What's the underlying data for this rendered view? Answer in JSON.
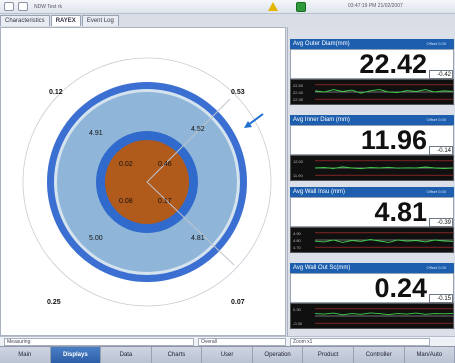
{
  "titlebar": {
    "title": "NDW Test rk",
    "clock": "03:47:19 PM 21/02/2007"
  },
  "tabs": [
    "Characteristics",
    "RAYEX",
    "Event Log"
  ],
  "cross_section": {
    "outer_corners": {
      "top_left": "0.12",
      "top_right": "0.53",
      "bottom_left": "0.25",
      "bottom_right": "0.07"
    },
    "wall": {
      "top_left": "4.91",
      "top_right": "4.52",
      "bottom_left": "5.00",
      "bottom_right": "4.81"
    },
    "core": {
      "top_left": "0.02",
      "top_right": "0.46",
      "bottom_left": "0.08",
      "bottom_right": "0.17"
    }
  },
  "status": {
    "left": "Measuring",
    "mid": "Overall",
    "right": "Zoom x1"
  },
  "meters": [
    {
      "label": "Avg Outer Diam(mm)",
      "offset": "Offset 0.00",
      "value": "22.42",
      "side": "-0.42",
      "y_top": "22.50",
      "y_mid": "22.40",
      "y_bot": "22.30",
      "trend": [
        0.55,
        0.5,
        0.6,
        0.52,
        0.58,
        0.45,
        0.55,
        0.6,
        0.5,
        0.48,
        0.56,
        0.52,
        0.6,
        0.5,
        0.55,
        0.53
      ]
    },
    {
      "label": "Avg Inner Diam (mm)",
      "offset": "Offset 0.00",
      "value": "11.96",
      "side": "-0.14",
      "y_top": "12.00",
      "y_mid": "",
      "y_bot": "11.90",
      "trend": [
        0.5,
        0.52,
        0.48,
        0.55,
        0.5,
        0.47,
        0.52,
        0.5,
        0.53,
        0.49,
        0.51,
        0.5,
        0.54,
        0.5,
        0.48,
        0.5
      ]
    },
    {
      "label": "Avg Wall Insu (mm)",
      "offset": "Offset 0.00",
      "value": "4.81",
      "side": "-0.39",
      "y_top": "4.90",
      "y_mid": "4.80",
      "y_bot": "4.70",
      "trend": [
        0.45,
        0.42,
        0.5,
        0.4,
        0.48,
        0.44,
        0.52,
        0.46,
        0.4,
        0.5,
        0.45,
        0.48,
        0.42,
        0.5,
        0.46,
        0.44
      ]
    },
    {
      "label": "Avg Wall Out Sc(mm)",
      "offset": "Offset 0.00",
      "value": "0.24",
      "side": "-0.15",
      "y_top": "0.30",
      "y_mid": "",
      "y_bot": "-0.30",
      "trend": [
        0.6,
        0.58,
        0.62,
        0.55,
        0.6,
        0.57,
        0.63,
        0.6,
        0.56,
        0.6,
        0.58,
        0.62,
        0.57,
        0.6,
        0.59,
        0.61
      ]
    }
  ],
  "nav": [
    {
      "label": "Main",
      "active": false
    },
    {
      "label": "Displays",
      "active": true
    },
    {
      "label": "Data",
      "active": false
    },
    {
      "label": "Charts",
      "active": false
    },
    {
      "label": "User",
      "active": false
    },
    {
      "label": "Operation",
      "active": false
    },
    {
      "label": "Product",
      "active": false
    },
    {
      "label": "Controller",
      "active": false
    },
    {
      "label": "Man/Auto",
      "active": false
    }
  ]
}
